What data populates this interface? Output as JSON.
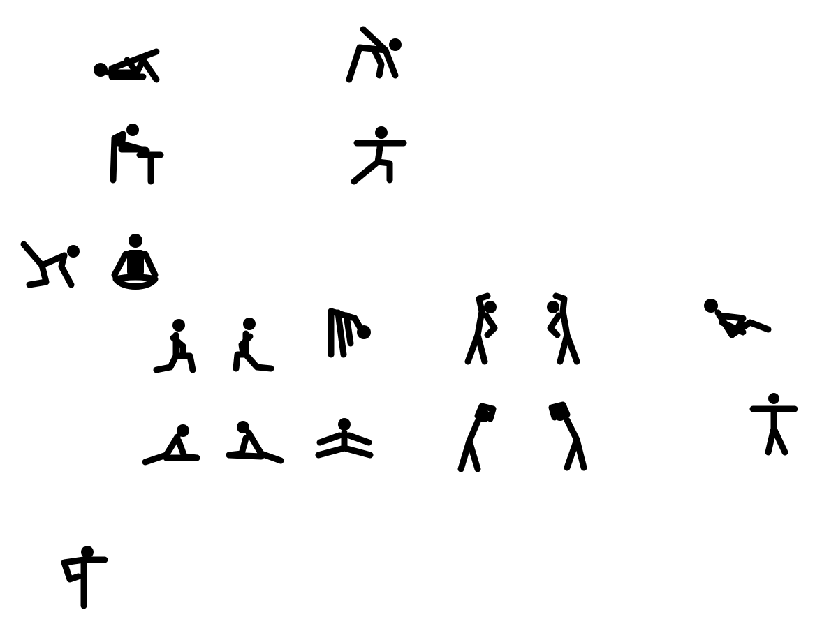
{
  "colors": {
    "background": "#ffffff",
    "figure": "#000000"
  },
  "icons": [
    {
      "name": "lying-knee-hug-stretch-icon"
    },
    {
      "name": "standing-side-bend-arm-up-icon"
    },
    {
      "name": "hamstring-stretch-on-table-icon"
    },
    {
      "name": "warrior-pose-icon"
    },
    {
      "name": "donkey-kick-icon"
    },
    {
      "name": "lotus-meditation-icon"
    },
    {
      "name": "kneeling-lunge-left-icon"
    },
    {
      "name": "kneeling-lunge-right-icon"
    },
    {
      "name": "forward-bend-icon"
    },
    {
      "name": "side-bend-right-icon"
    },
    {
      "name": "side-bend-left-icon"
    },
    {
      "name": "sit-up-crunch-icon"
    },
    {
      "name": "seated-hamstring-stretch-left-icon"
    },
    {
      "name": "seated-hamstring-stretch-right-icon"
    },
    {
      "name": "straddle-split-icon"
    },
    {
      "name": "overhead-side-stretch-right-icon"
    },
    {
      "name": "overhead-side-stretch-left-icon"
    },
    {
      "name": "t-pose-standing-icon"
    },
    {
      "name": "standing-quad-stretch-icon"
    }
  ]
}
